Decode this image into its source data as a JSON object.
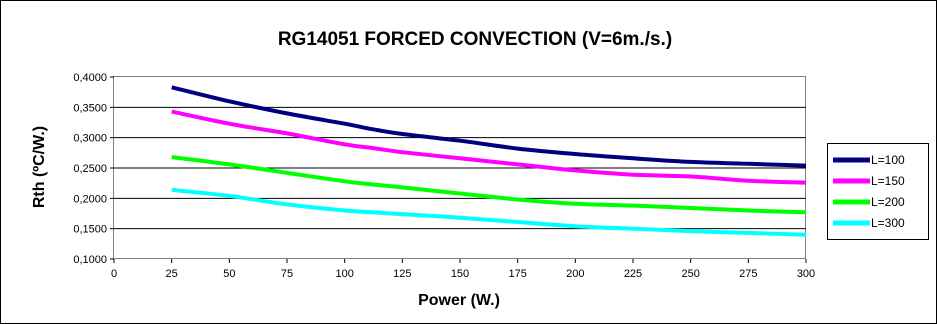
{
  "chart_data": {
    "type": "line",
    "title": "RG14051 FORCED CONVECTION (V=6m./s.)",
    "xlabel": "Power (W.)",
    "ylabel": "Rth (ºC/W.)",
    "xlim": [
      0,
      300
    ],
    "ylim": [
      0.1,
      0.4
    ],
    "x_ticks": [
      "0",
      "25",
      "50",
      "75",
      "100",
      "125",
      "150",
      "175",
      "200",
      "225",
      "250",
      "275",
      "300"
    ],
    "y_ticks": [
      "0,1000",
      "0,1500",
      "0,2000",
      "0,2500",
      "0,3000",
      "0,3500",
      "0,4000"
    ],
    "grid": "horizontal",
    "legend_position": "right",
    "x": [
      25,
      50,
      75,
      100,
      112,
      125,
      150,
      175,
      200,
      225,
      250,
      275,
      300
    ],
    "series": [
      {
        "name": "L=100",
        "color": "#000080",
        "values": [
          0.383,
          0.36,
          0.34,
          0.323,
          0.314,
          0.306,
          0.295,
          0.282,
          0.273,
          0.266,
          0.26,
          0.257,
          0.254
        ]
      },
      {
        "name": "L=150",
        "color": "#ff00ff",
        "values": [
          0.343,
          0.323,
          0.307,
          0.289,
          0.283,
          0.276,
          0.266,
          0.256,
          0.246,
          0.239,
          0.236,
          0.229,
          0.226
        ]
      },
      {
        "name": "L=200",
        "color": "#00ff00",
        "values": [
          0.268,
          0.256,
          0.242,
          0.228,
          0.223,
          0.218,
          0.208,
          0.198,
          0.191,
          0.188,
          0.184,
          0.18,
          0.177
        ]
      },
      {
        "name": "L=300",
        "color": "#00ffff",
        "values": [
          0.214,
          0.204,
          0.19,
          0.18,
          0.177,
          0.174,
          0.168,
          0.161,
          0.154,
          0.15,
          0.146,
          0.143,
          0.14
        ]
      }
    ]
  }
}
